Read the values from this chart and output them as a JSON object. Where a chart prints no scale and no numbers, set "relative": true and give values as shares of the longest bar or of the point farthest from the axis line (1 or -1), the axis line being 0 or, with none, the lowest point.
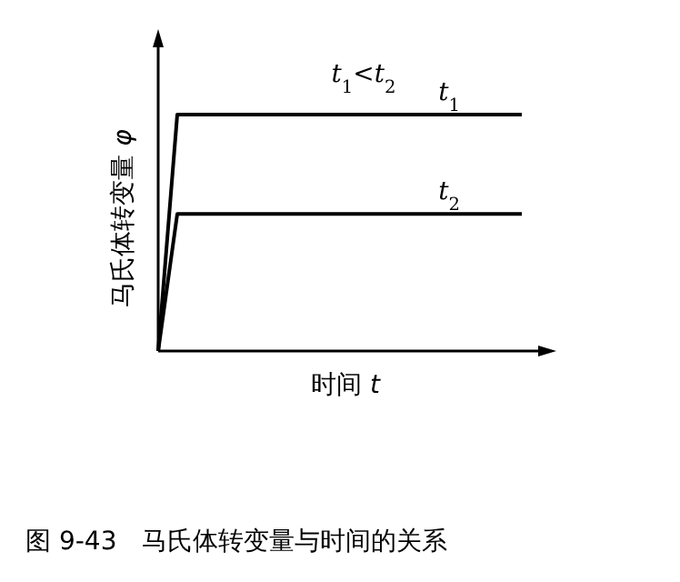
{
  "chart_data": {
    "type": "line",
    "relative": true,
    "title": "*t*$_{1}$<*t*$_{2}$",
    "xlabel": "时间 *t*",
    "ylabel": "马氏体转变量 *φ*",
    "categories": [
      null,
      null,
      null,
      null,
      null,
      null,
      null,
      null,
      null,
      null,
      null,
      null,
      null,
      null,
      null,
      null,
      null,
      null,
      null,
      null
    ],
    "series": [
      {
        "name": "*t*$_{1}$",
        "color": "#000000",
        "values": [
          0,
          1,
          1,
          1,
          1,
          1,
          1,
          1,
          1,
          1,
          1,
          1,
          1,
          1,
          1,
          1,
          1,
          1,
          1,
          1
        ]
      },
      {
        "name": "*t*$_{2}$",
        "color": "#000000",
        "values": [
          0,
          0.58,
          0.58,
          0.58,
          0.58,
          0.58,
          0.58,
          0.58,
          0.58,
          0.58,
          0.58,
          0.58,
          0.58,
          0.58,
          0.58,
          0.58,
          0.58,
          0.58,
          0.58,
          0.58
        ]
      }
    ],
    "annotations": [
      "图 9-43　马氏体转变量与时间的关系"
    ]
  }
}
